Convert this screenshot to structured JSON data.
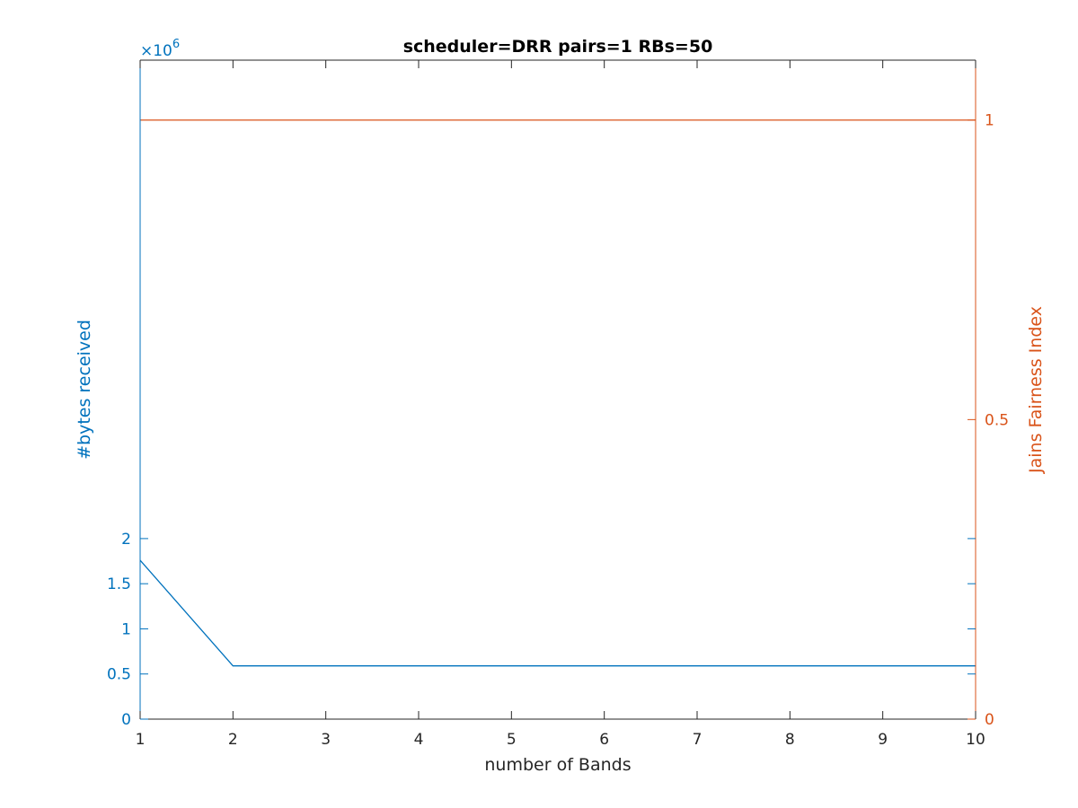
{
  "chart_data": {
    "type": "line",
    "title": "scheduler=DRR pairs=1 RBs=50",
    "xlabel": "number of Bands",
    "x": [
      1,
      2,
      3,
      4,
      5,
      6,
      7,
      8,
      9,
      10
    ],
    "xlim": [
      1,
      10
    ],
    "xticks": [
      "1",
      "2",
      "3",
      "4",
      "5",
      "6",
      "7",
      "8",
      "9",
      "10"
    ],
    "y_left": {
      "label": "#bytes received",
      "color": "#0072BD",
      "exponent_label": "×10",
      "exponent_power": "6",
      "ylim": [
        0,
        7.3
      ],
      "ticks": [
        0,
        0.5,
        1,
        1.5,
        2
      ],
      "tick_labels": [
        "0",
        "0.5",
        "1",
        "1.5",
        "2"
      ]
    },
    "y_right": {
      "label": "Jains Fairness Index",
      "color": "#D95319",
      "ylim": [
        0,
        1.1
      ],
      "ticks": [
        0,
        0.5,
        1
      ],
      "tick_labels": [
        "0",
        "0.5",
        "1"
      ]
    },
    "series": [
      {
        "axis": "left",
        "color": "#0072BD",
        "values": [
          1.76,
          0.59,
          0.59,
          0.59,
          0.59,
          0.59,
          0.59,
          0.59,
          0.59,
          0.59
        ]
      },
      {
        "axis": "right",
        "color": "#D95319",
        "values": [
          1,
          1,
          1,
          1,
          1,
          1,
          1,
          1,
          1,
          1
        ]
      }
    ],
    "grid": false,
    "legend": "none"
  }
}
